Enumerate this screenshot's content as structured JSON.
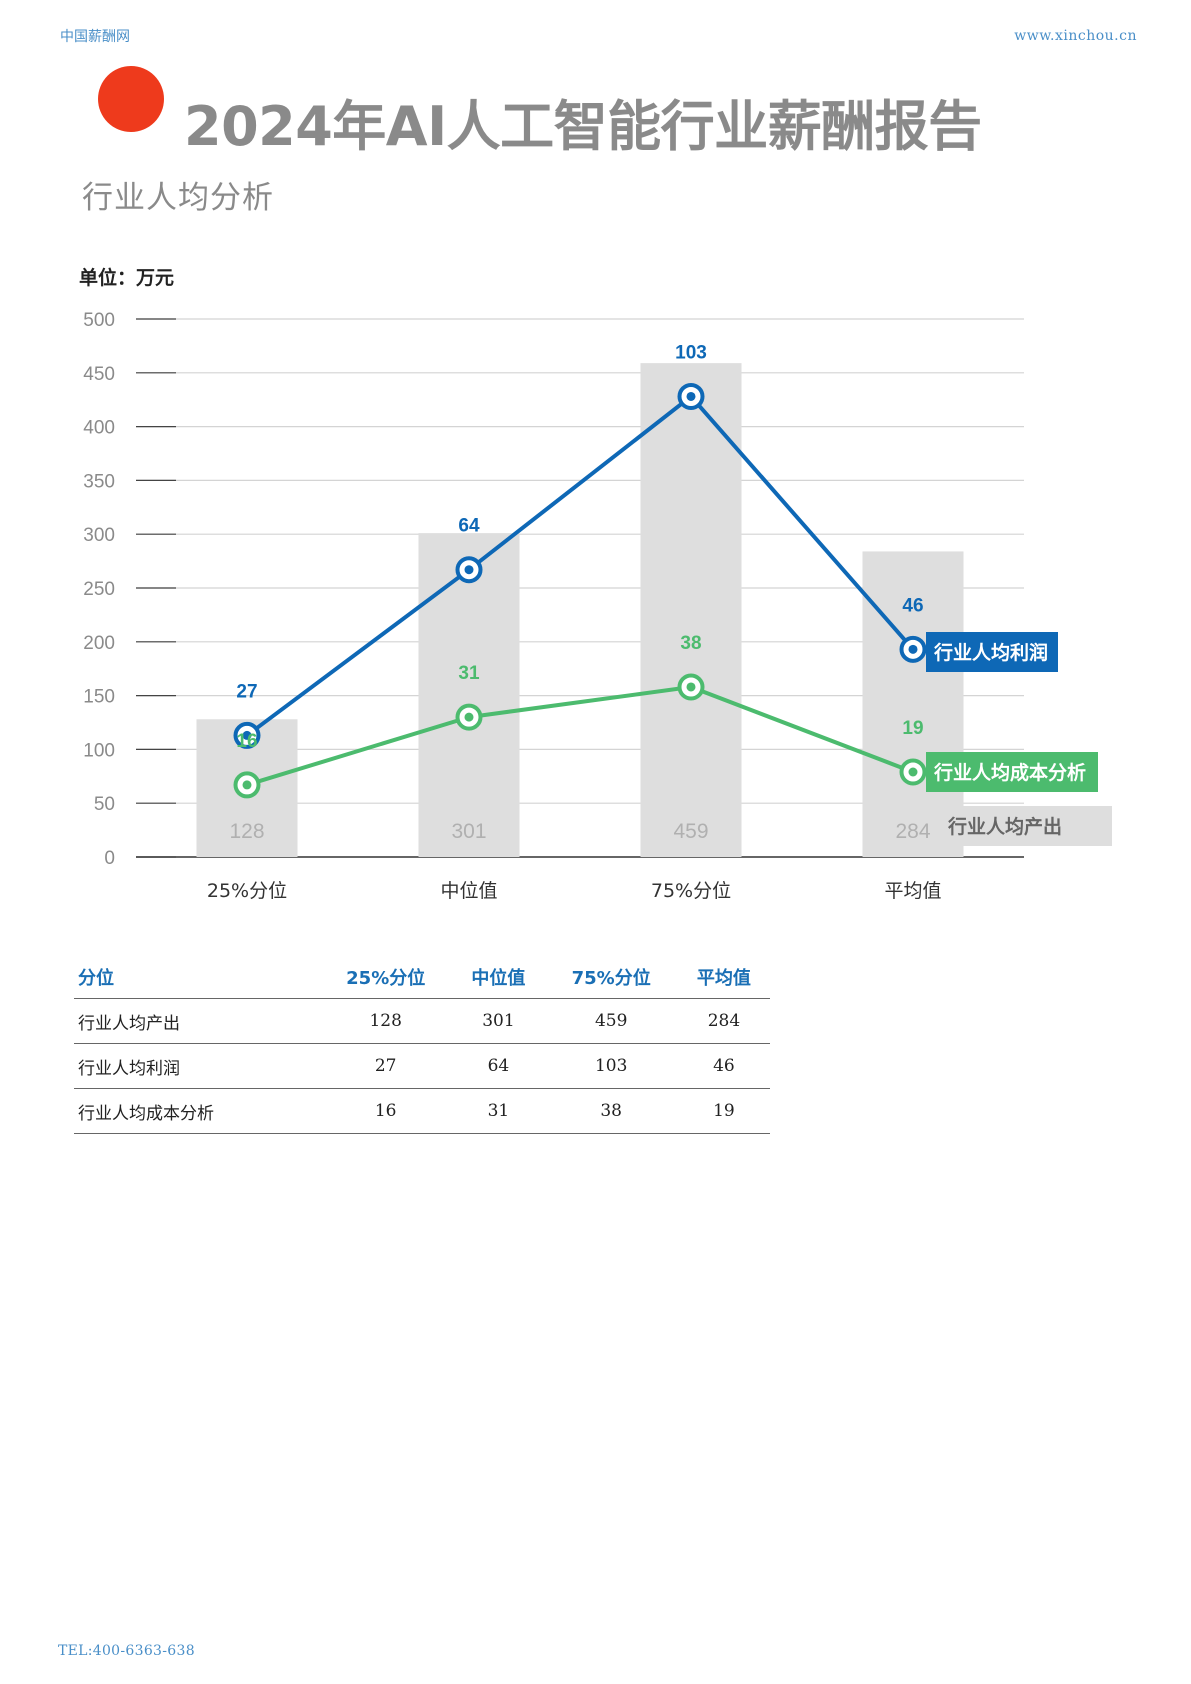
{
  "header": {
    "left": "中国薪酬网",
    "right": "www.xinchou.cn"
  },
  "title": "2024年AI人工智能行业薪酬报告",
  "subtitle": "行业人均分析",
  "unit_label": "单位：万元",
  "colors": {
    "accent": "#ee3a1c",
    "profit": "#0e68b6",
    "cost": "#4cbb6e",
    "output_bar": "#dedede"
  },
  "chart_data": {
    "type": "bar",
    "categories": [
      "25%分位",
      "中位值",
      "75%分位",
      "平均值"
    ],
    "ylim": [
      0,
      500
    ],
    "yticks": [
      0,
      50,
      100,
      150,
      200,
      250,
      300,
      350,
      400,
      450,
      500
    ],
    "grid": true,
    "series": [
      {
        "name": "行业人均产出",
        "type": "bar",
        "values": [
          128,
          301,
          459,
          284
        ]
      },
      {
        "name": "行业人均利润",
        "type": "line",
        "values": [
          27,
          64,
          103,
          46
        ]
      },
      {
        "name": "行业人均成本分析",
        "type": "line",
        "values": [
          16,
          31,
          38,
          19
        ]
      }
    ]
  },
  "table": {
    "headers": [
      "分位",
      "25%分位",
      "中位值",
      "75%分位",
      "平均值"
    ],
    "rows": [
      [
        "行业人均产出",
        "128",
        "301",
        "459",
        "284"
      ],
      [
        "行业人均利润",
        "27",
        "64",
        "103",
        "46"
      ],
      [
        "行业人均成本分析",
        "16",
        "31",
        "38",
        "19"
      ]
    ]
  },
  "footer": "TEL:400-6363-638"
}
